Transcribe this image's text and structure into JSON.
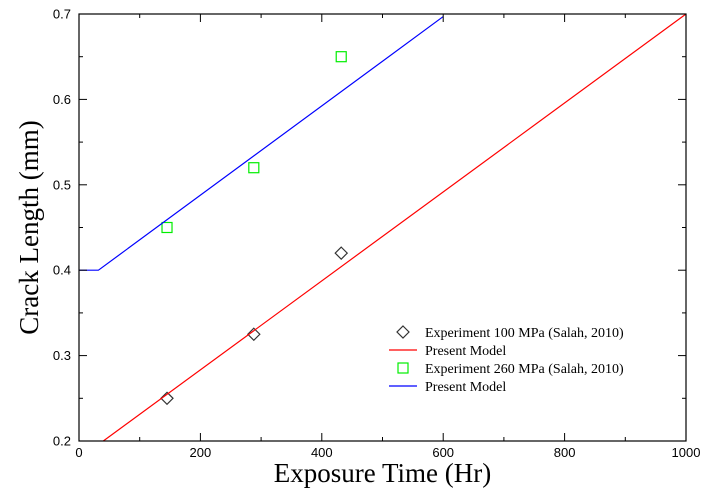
{
  "chart_data": {
    "type": "line",
    "title": "",
    "xlabel": "Exposure Time (Hr)",
    "ylabel": "Crack Length (mm)",
    "xlim": [
      0,
      1000
    ],
    "ylim": [
      0.2,
      0.7
    ],
    "x_ticks": [
      0,
      200,
      400,
      600,
      800,
      1000
    ],
    "y_ticks": [
      0.2,
      0.3,
      0.4,
      0.5,
      0.6,
      0.7
    ],
    "x_tick_labels": [
      "0",
      "200",
      "400",
      "600",
      "800",
      "1000"
    ],
    "y_tick_labels": [
      "0.2",
      "0.3",
      "0.4",
      "0.5",
      "0.6",
      "0.7"
    ],
    "grid": false,
    "legend_position": "bottom-right",
    "series": [
      {
        "name": "Experiment 100 MPa (Salah, 2010)",
        "kind": "scatter",
        "marker": "diamond",
        "color": "#333333",
        "x": [
          145,
          288,
          432
        ],
        "y": [
          0.25,
          0.325,
          0.42
        ]
      },
      {
        "name": "Present Model",
        "kind": "line",
        "color": "#ff0000",
        "x": [
          40,
          1000
        ],
        "y": [
          0.2,
          0.7
        ]
      },
      {
        "name": "Experiment 260 MPa (Salah, 2010)",
        "kind": "scatter",
        "marker": "square",
        "color": "#00ee00",
        "x": [
          145,
          288,
          432
        ],
        "y": [
          0.45,
          0.52,
          0.65
        ]
      },
      {
        "name": "Present Model",
        "kind": "line",
        "color": "#0000ff",
        "x": [
          0,
          32,
          600
        ],
        "y": [
          0.4,
          0.4,
          0.697
        ]
      }
    ]
  }
}
